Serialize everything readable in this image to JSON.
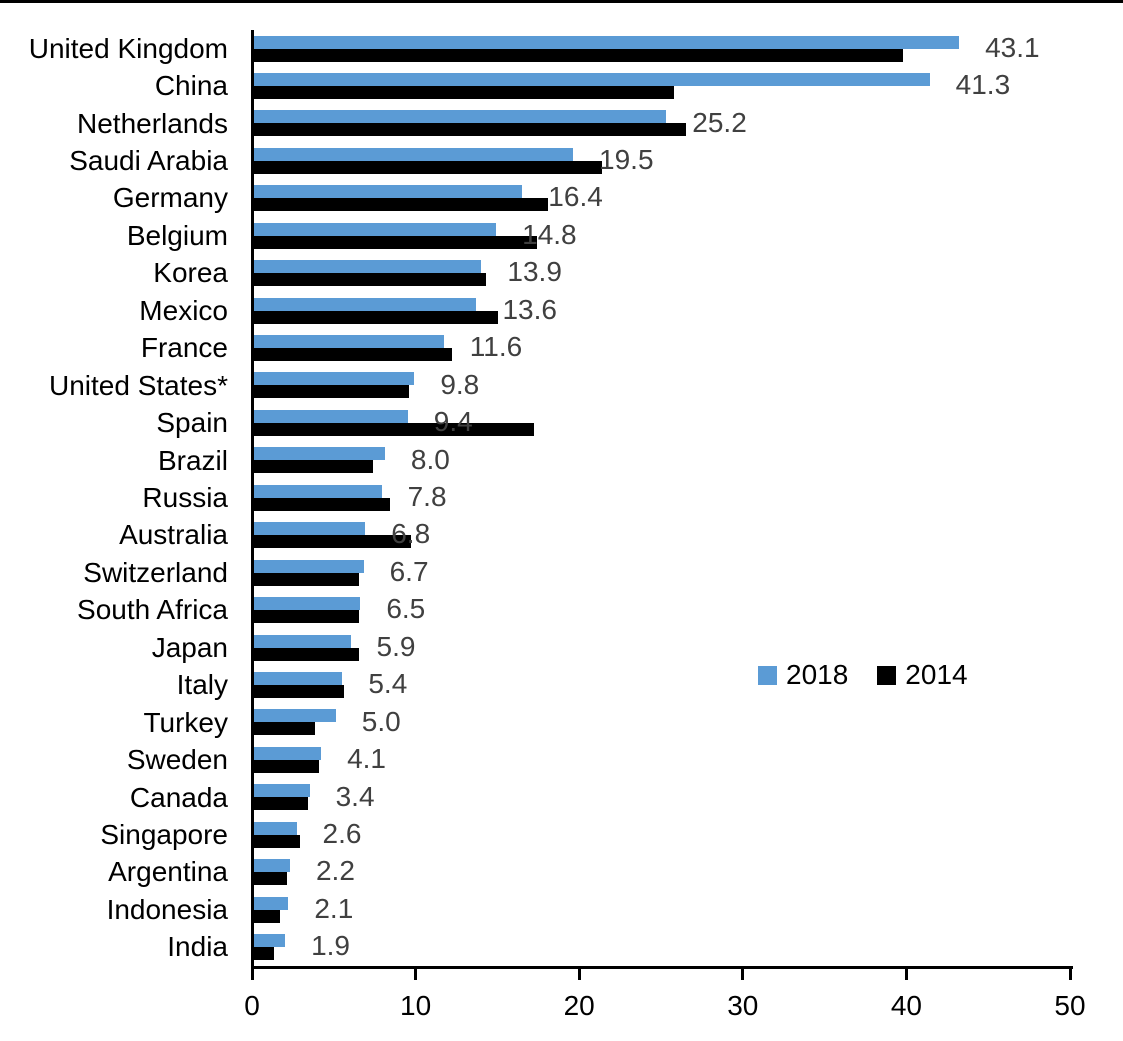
{
  "figure": {
    "background": "#FFFFFF",
    "top_border_color": "#000000",
    "axis_color": "#000000"
  },
  "chart_data": {
    "type": "bar",
    "orientation": "horizontal",
    "title": "",
    "xlabel": "",
    "ylabel": "",
    "grid": "off",
    "xlim": [
      0,
      50
    ],
    "x_ticks": [
      "0",
      "10",
      "20",
      "30",
      "40",
      "50"
    ],
    "categories": [
      "United Kingdom",
      "China",
      "Netherlands",
      "Saudi Arabia",
      "Germany",
      "Belgium",
      "Korea",
      "Mexico",
      "France",
      "United States*",
      "Spain",
      "Brazil",
      "Russia",
      "Australia",
      "Switzerland",
      "South Africa",
      "Japan",
      "Italy",
      "Turkey",
      "Sweden",
      "Canada",
      "Singapore",
      "Argentina",
      "Indonesia",
      "India"
    ],
    "series": [
      {
        "name": "2018",
        "color": "#5B9BD5",
        "values": [
          43.1,
          41.3,
          25.2,
          19.5,
          16.4,
          14.8,
          13.9,
          13.6,
          11.6,
          9.8,
          9.4,
          8.0,
          7.8,
          6.8,
          6.7,
          6.5,
          5.9,
          5.4,
          5.0,
          4.1,
          3.4,
          2.6,
          2.2,
          2.1,
          1.9
        ],
        "data_labels": [
          "43.1",
          "41.3",
          "25.2",
          "19.5",
          "16.4",
          "14.8",
          "13.9",
          "13.6",
          "11.6",
          "9.8",
          "9.4",
          "8.0",
          "7.8",
          "6.8",
          "6.7",
          "6.5",
          "5.9",
          "5.4",
          "5.0",
          "4.1",
          "3.4",
          "2.6",
          "2.2",
          "2.1",
          "1.9"
        ],
        "data_labels_shown": true
      },
      {
        "name": "2014",
        "color": "#000000",
        "values": [
          39.7,
          25.7,
          26.4,
          21.3,
          18.0,
          17.3,
          14.2,
          14.9,
          12.1,
          9.5,
          17.1,
          7.3,
          8.3,
          9.6,
          6.4,
          6.4,
          6.4,
          5.5,
          3.7,
          4.0,
          3.3,
          2.8,
          2.0,
          1.6,
          1.2
        ],
        "data_labels_shown": false
      }
    ],
    "value_label_color": "#404040",
    "legend": {
      "position": "middle-right",
      "entries": [
        "2018",
        "2014"
      ]
    }
  }
}
